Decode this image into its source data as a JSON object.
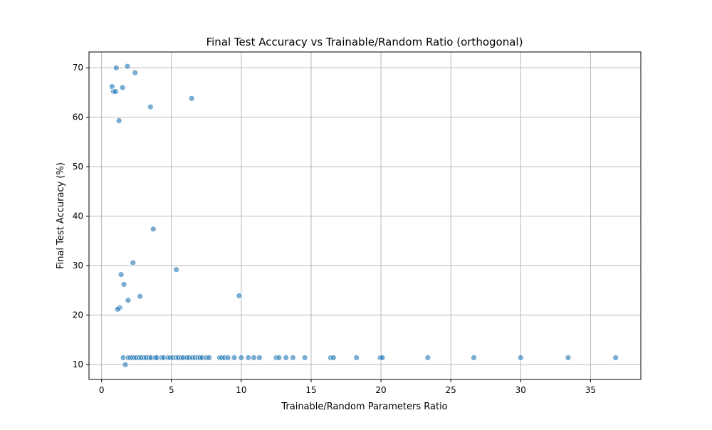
{
  "chart_data": {
    "type": "scatter",
    "title": "Final Test Accuracy vs Trainable/Random Ratio (orthogonal)",
    "xlabel": "Trainable/Random Parameters Ratio",
    "ylabel": "Final Test Accuracy (%)",
    "xlim": [
      -0.9,
      38.6
    ],
    "ylim": [
      7.0,
      73.2
    ],
    "xticks": [
      0,
      5,
      10,
      15,
      20,
      25,
      30,
      35
    ],
    "yticks": [
      10,
      20,
      30,
      40,
      50,
      60,
      70
    ],
    "grid": true,
    "colors": {
      "points": "#1f77b4"
    },
    "points": [
      [
        0.75,
        66.2
      ],
      [
        0.85,
        65.2
      ],
      [
        1.0,
        65.2
      ],
      [
        1.05,
        70.0
      ],
      [
        1.25,
        59.3
      ],
      [
        1.5,
        66.0
      ],
      [
        1.85,
        70.3
      ],
      [
        2.4,
        69.0
      ],
      [
        3.5,
        62.1
      ],
      [
        6.45,
        63.8
      ],
      [
        3.7,
        37.4
      ],
      [
        2.25,
        30.6
      ],
      [
        5.35,
        29.2
      ],
      [
        1.4,
        28.2
      ],
      [
        1.6,
        26.2
      ],
      [
        2.75,
        23.8
      ],
      [
        1.9,
        23.0
      ],
      [
        1.3,
        21.5
      ],
      [
        1.15,
        21.2
      ],
      [
        9.85,
        23.9
      ],
      [
        1.7,
        10.0
      ],
      [
        1.55,
        11.4
      ],
      [
        1.9,
        11.4
      ],
      [
        2.05,
        11.4
      ],
      [
        2.2,
        11.4
      ],
      [
        2.35,
        11.4
      ],
      [
        2.5,
        11.4
      ],
      [
        2.7,
        11.4
      ],
      [
        2.85,
        11.4
      ],
      [
        3.05,
        11.4
      ],
      [
        3.2,
        11.4
      ],
      [
        3.4,
        11.4
      ],
      [
        3.55,
        11.4
      ],
      [
        3.85,
        11.4
      ],
      [
        3.95,
        11.4
      ],
      [
        4.3,
        11.4
      ],
      [
        4.45,
        11.4
      ],
      [
        4.75,
        11.4
      ],
      [
        4.9,
        11.4
      ],
      [
        5.1,
        11.4
      ],
      [
        5.35,
        11.4
      ],
      [
        5.5,
        11.4
      ],
      [
        5.7,
        11.4
      ],
      [
        5.85,
        11.4
      ],
      [
        6.1,
        11.4
      ],
      [
        6.25,
        11.4
      ],
      [
        6.5,
        11.4
      ],
      [
        6.7,
        11.4
      ],
      [
        6.9,
        11.4
      ],
      [
        7.05,
        11.4
      ],
      [
        7.2,
        11.4
      ],
      [
        7.5,
        11.4
      ],
      [
        7.7,
        11.4
      ],
      [
        8.45,
        11.4
      ],
      [
        8.6,
        11.4
      ],
      [
        8.8,
        11.4
      ],
      [
        9.05,
        11.4
      ],
      [
        9.5,
        11.4
      ],
      [
        10.0,
        11.4
      ],
      [
        10.5,
        11.4
      ],
      [
        10.9,
        11.4
      ],
      [
        11.3,
        11.4
      ],
      [
        12.5,
        11.4
      ],
      [
        12.7,
        11.4
      ],
      [
        13.2,
        11.4
      ],
      [
        13.7,
        11.4
      ],
      [
        14.55,
        11.4
      ],
      [
        16.4,
        11.4
      ],
      [
        16.6,
        11.4
      ],
      [
        18.25,
        11.4
      ],
      [
        19.95,
        11.4
      ],
      [
        20.1,
        11.4
      ],
      [
        23.35,
        11.4
      ],
      [
        26.65,
        11.4
      ],
      [
        30.0,
        11.4
      ],
      [
        33.4,
        11.4
      ],
      [
        36.8,
        11.4
      ]
    ]
  }
}
